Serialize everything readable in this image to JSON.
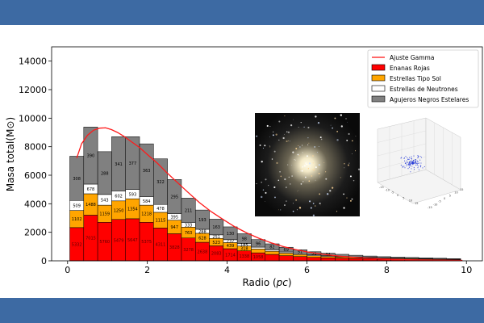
{
  "colors": {
    "band": "#3d6aa3",
    "enanas": "#ff0000",
    "sol": "#ffa500",
    "neutrones": "#ffffff",
    "agujeros": "#808080",
    "fit": "#ff1a1a"
  },
  "chart_data": {
    "type": "bar",
    "stacked": true,
    "xlabel": "Radio (pc)",
    "ylabel": "Masa total(M⊙)",
    "xlim": [
      -0.4,
      10.4
    ],
    "ylim": [
      0,
      15000
    ],
    "xticks": [
      0,
      2,
      4,
      6,
      8,
      10
    ],
    "yticks": [
      0,
      2000,
      4000,
      6000,
      8000,
      10000,
      12000,
      14000
    ],
    "legend_position": "top-right",
    "bin_width": 0.35,
    "x": [
      0.23,
      0.58,
      0.93,
      1.28,
      1.63,
      1.98,
      2.33,
      2.68,
      3.03,
      3.38,
      3.73,
      4.08,
      4.43,
      4.78,
      5.13,
      5.48,
      5.83,
      6.18,
      6.53,
      6.88,
      7.23,
      7.58,
      7.93,
      8.28,
      8.63,
      8.98,
      9.33,
      9.68
    ],
    "series": [
      {
        "name": "Enanas Rojas",
        "values": [
          2330,
          3200,
          2700,
          2900,
          2950,
          2700,
          2300,
          1900,
          1600,
          1300,
          1050,
          850,
          700,
          560,
          450,
          360,
          300,
          240,
          210,
          180,
          160,
          140,
          120,
          110,
          100,
          90,
          80,
          70
        ]
      },
      {
        "name": "Estrellas Tipo Sol",
        "values": [
          1200,
          1500,
          1200,
          1300,
          1400,
          1200,
          1100,
          950,
          760,
          630,
          520,
          430,
          340,
          270,
          220,
          180,
          140,
          120,
          100,
          85,
          75,
          65,
          55,
          50,
          45,
          40,
          35,
          30
        ]
      },
      {
        "name": "Estrellas de Neutrones",
        "values": [
          700,
          678,
          750,
          700,
          650,
          600,
          550,
          450,
          333,
          280,
          250,
          200,
          160,
          130,
          100,
          80,
          65,
          55,
          45,
          40,
          35,
          30,
          25,
          22,
          20,
          18,
          15,
          12
        ]
      },
      {
        "name": "Agujeros Negros Estelares",
        "values": [
          3100,
          4000,
          3000,
          3800,
          3700,
          3700,
          3200,
          2400,
          1700,
          1350,
          1100,
          900,
          700,
          530,
          420,
          330,
          270,
          220,
          180,
          150,
          120,
          100,
          90,
          80,
          70,
          60,
          50,
          40
        ]
      }
    ],
    "labels": {
      "Enanas Rojas": [
        "5332",
        "7015",
        "5760",
        "5479",
        "5647",
        "5375",
        "4311",
        "3828",
        "3278",
        "2638",
        "2083",
        "1714",
        "1338",
        "1058",
        "",
        "",
        "",
        "",
        "",
        "",
        "",
        "",
        "",
        "",
        "",
        "",
        "",
        ""
      ],
      "Estrellas Tipo Sol": [
        "1102",
        "1488",
        "1159",
        "1250",
        "1354",
        "1218",
        "1115",
        "947",
        "763",
        "628",
        "523",
        "439",
        "318",
        "",
        "",
        "",
        "",
        "",
        "",
        "",
        "",
        "",
        "",
        "",
        "",
        "",
        "",
        ""
      ],
      "Estrellas de Neutrones": [
        "509",
        "678",
        "543",
        "602",
        "593",
        "584",
        "478",
        "395",
        "333",
        "288",
        "251",
        "237",
        "185",
        "",
        "",
        "",
        "",
        "",
        "",
        "",
        "",
        "",
        "",
        "",
        "",
        "",
        "",
        ""
      ],
      "Agujeros Negros Estelares": [
        "308",
        "390",
        "288",
        "341",
        "377",
        "363",
        "322",
        "295",
        "211",
        "193",
        "163",
        "130",
        "98",
        "96",
        "82",
        "69",
        "51",
        "51",
        "34",
        "",
        "",
        "",
        "",
        "",
        "",
        "",
        "",
        ""
      ]
    },
    "fit": {
      "name": "Ajuste Gamma",
      "x": [
        0.23,
        0.35,
        0.5,
        0.65,
        0.8,
        0.95,
        1.1,
        1.25,
        1.4,
        1.6,
        1.8,
        2.0,
        2.25,
        2.5,
        2.75,
        3.0,
        3.3,
        3.6,
        3.9,
        4.2,
        4.5,
        4.8,
        5.1,
        5.4,
        5.7,
        6.0,
        6.4,
        6.8,
        7.2,
        7.6,
        8.0,
        8.5,
        9.0,
        9.5,
        9.9
      ],
      "y": [
        7200,
        8200,
        8800,
        9150,
        9300,
        9320,
        9200,
        9000,
        8750,
        8350,
        7950,
        7450,
        6850,
        6150,
        5500,
        4850,
        4100,
        3450,
        2900,
        2380,
        1950,
        1580,
        1270,
        1010,
        800,
        630,
        460,
        330,
        240,
        170,
        120,
        80,
        55,
        40,
        30
      ]
    },
    "insets": {
      "axis_3d_ticks": [
        "-15",
        "-10",
        "-5",
        "0",
        "5",
        "10",
        "15"
      ]
    }
  }
}
